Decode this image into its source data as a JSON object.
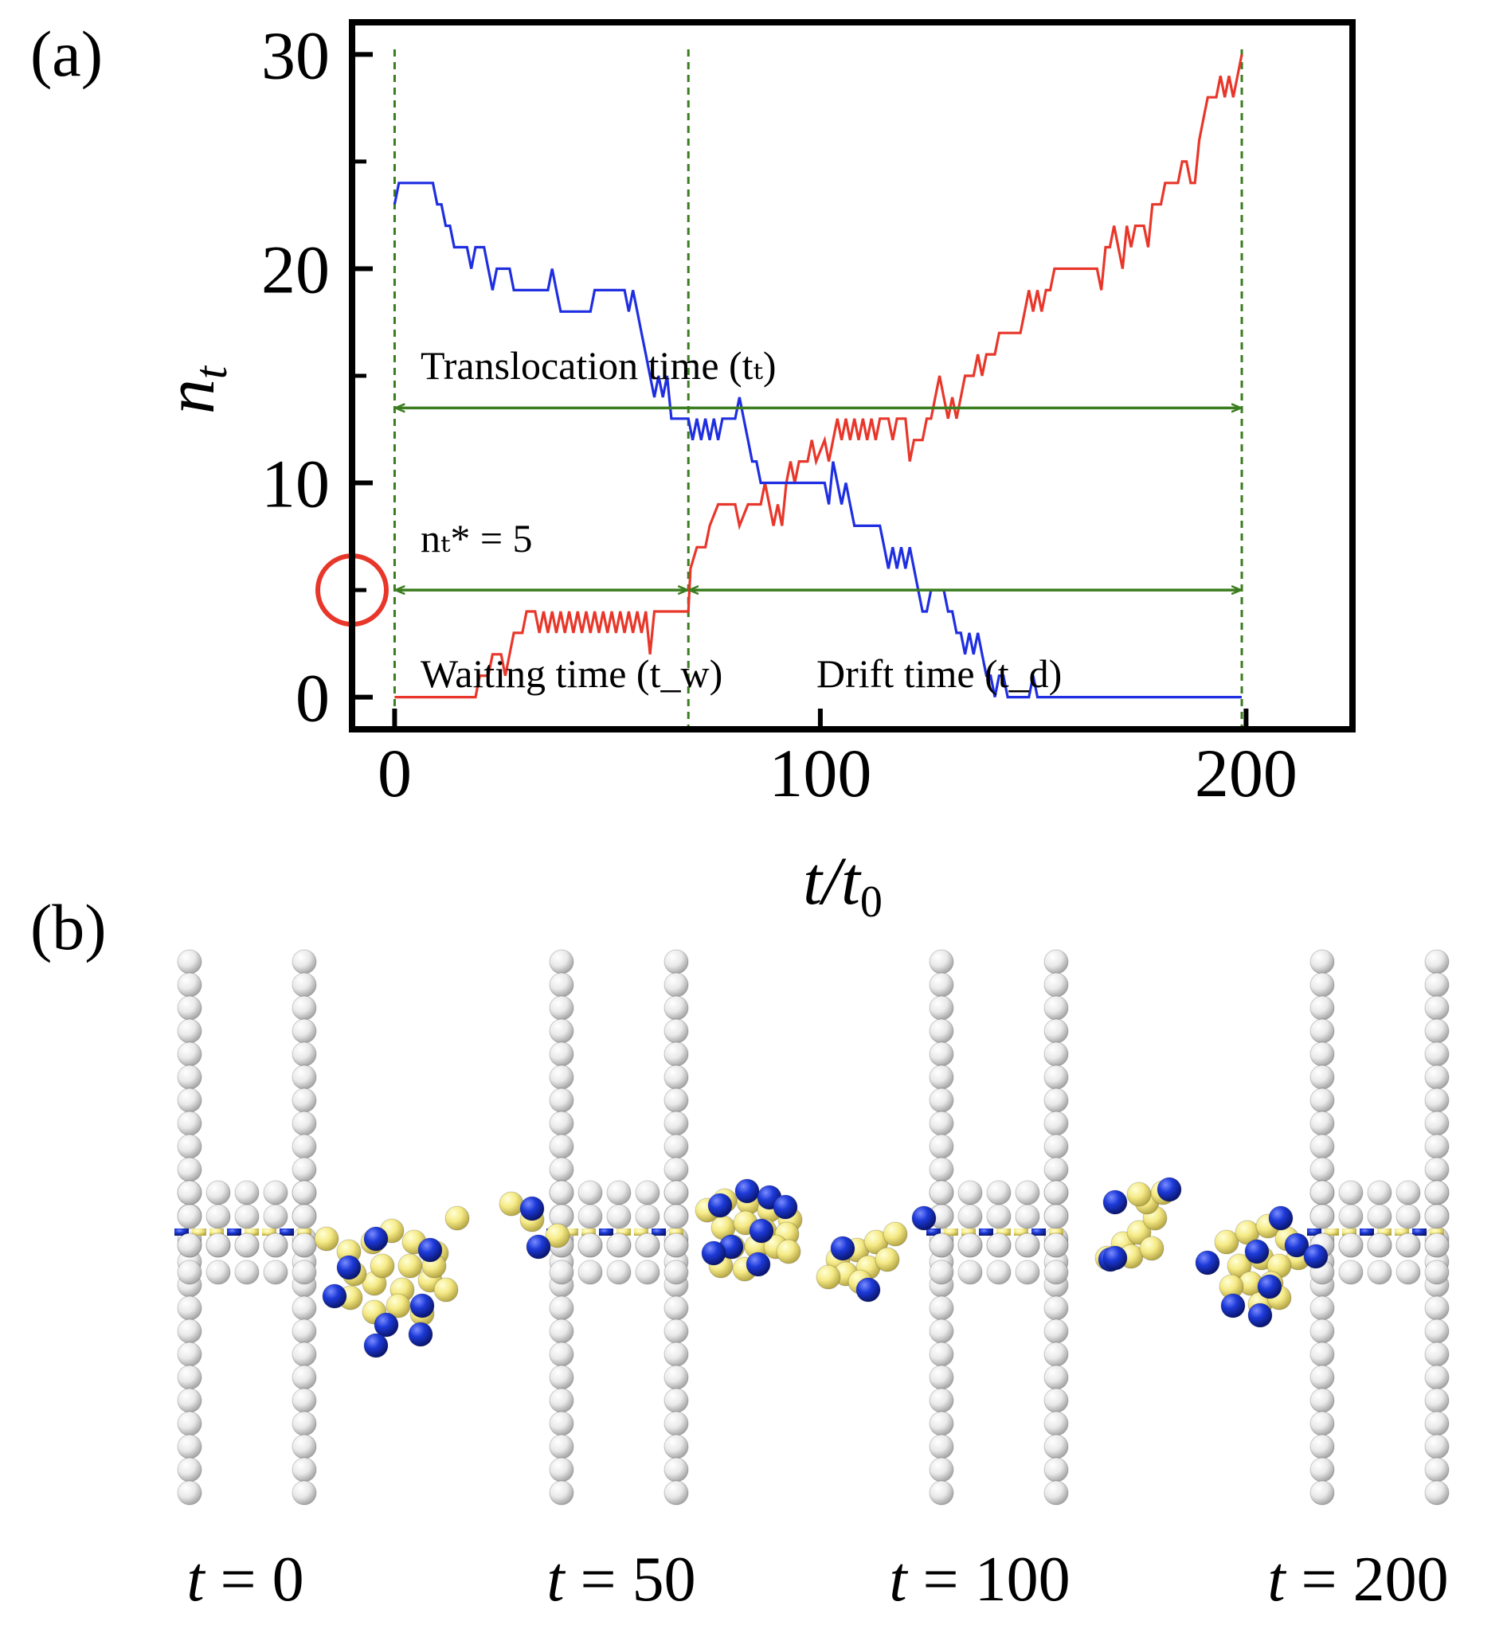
{
  "panel_labels": {
    "a": "(a)",
    "b": "(b)"
  },
  "chart_data": {
    "type": "line",
    "xlabel": "t/t₀",
    "ylabel": "n_t",
    "xlim": [
      -10,
      225
    ],
    "ylim": [
      -1.5,
      31.5
    ],
    "x_ticks": [
      0,
      100,
      200
    ],
    "y_ticks": [
      0,
      10,
      20,
      30
    ],
    "y_minor_ticks": [
      5,
      15,
      25
    ],
    "series": [
      {
        "name": "red",
        "color": "#e8372a",
        "points": [
          [
            0,
            0
          ],
          [
            19,
            0
          ],
          [
            20,
            1
          ],
          [
            22,
            1
          ],
          [
            23,
            2
          ],
          [
            25,
            2
          ],
          [
            26,
            1
          ],
          [
            27,
            2
          ],
          [
            28,
            3
          ],
          [
            30,
            3
          ],
          [
            31,
            4
          ],
          [
            33,
            4
          ],
          [
            34,
            3
          ],
          [
            35,
            4
          ],
          [
            36,
            3
          ],
          [
            37,
            4
          ],
          [
            38,
            3
          ],
          [
            39,
            4
          ],
          [
            40,
            3
          ],
          [
            41,
            4
          ],
          [
            42,
            3
          ],
          [
            43,
            4
          ],
          [
            44,
            3
          ],
          [
            45,
            4
          ],
          [
            46,
            3
          ],
          [
            47,
            4
          ],
          [
            48,
            3
          ],
          [
            49,
            4
          ],
          [
            50,
            3
          ],
          [
            51,
            4
          ],
          [
            52,
            3
          ],
          [
            53,
            4
          ],
          [
            54,
            3
          ],
          [
            55,
            4
          ],
          [
            56,
            3
          ],
          [
            57,
            4
          ],
          [
            58,
            3
          ],
          [
            59,
            4
          ],
          [
            60,
            2
          ],
          [
            61,
            4
          ],
          [
            69,
            4
          ],
          [
            69.5,
            6
          ],
          [
            71,
            7
          ],
          [
            73,
            7
          ],
          [
            74,
            8
          ],
          [
            76,
            9
          ],
          [
            80,
            9
          ],
          [
            81,
            8
          ],
          [
            83,
            9
          ],
          [
            86,
            9
          ],
          [
            87,
            10
          ],
          [
            88,
            9
          ],
          [
            89,
            8
          ],
          [
            90,
            9
          ],
          [
            91,
            8
          ],
          [
            92,
            10
          ],
          [
            93,
            11
          ],
          [
            94,
            10
          ],
          [
            95,
            11
          ],
          [
            97,
            11
          ],
          [
            98,
            12
          ],
          [
            99,
            11
          ],
          [
            101,
            12
          ],
          [
            102,
            11
          ],
          [
            103,
            12
          ],
          [
            104,
            13
          ],
          [
            105,
            12
          ],
          [
            106,
            13
          ],
          [
            107,
            12
          ],
          [
            108,
            13
          ],
          [
            109,
            12
          ],
          [
            110,
            13
          ],
          [
            111,
            12
          ],
          [
            112,
            13
          ],
          [
            113,
            12
          ],
          [
            114,
            13
          ],
          [
            116,
            13
          ],
          [
            117,
            12
          ],
          [
            118,
            13
          ],
          [
            120,
            13
          ],
          [
            121,
            11
          ],
          [
            122,
            12
          ],
          [
            124,
            12
          ],
          [
            125,
            13
          ],
          [
            126,
            13
          ],
          [
            127,
            14
          ],
          [
            128,
            15
          ],
          [
            129,
            14
          ],
          [
            130,
            13
          ],
          [
            131,
            14
          ],
          [
            132,
            13
          ],
          [
            133,
            14
          ],
          [
            134,
            15
          ],
          [
            136,
            15
          ],
          [
            137,
            16
          ],
          [
            138,
            15
          ],
          [
            139,
            16
          ],
          [
            141,
            16
          ],
          [
            142,
            17
          ],
          [
            147,
            17
          ],
          [
            148,
            18
          ],
          [
            149,
            19
          ],
          [
            150,
            18
          ],
          [
            151,
            19
          ],
          [
            152,
            18
          ],
          [
            153,
            19
          ],
          [
            154,
            19
          ],
          [
            155,
            20
          ],
          [
            165,
            20
          ],
          [
            166,
            19
          ],
          [
            167,
            21
          ],
          [
            168,
            21
          ],
          [
            169,
            22
          ],
          [
            170,
            21
          ],
          [
            171,
            20
          ],
          [
            172,
            22
          ],
          [
            173,
            21
          ],
          [
            174,
            22
          ],
          [
            176,
            22
          ],
          [
            177,
            21
          ],
          [
            178,
            23
          ],
          [
            180,
            23
          ],
          [
            181,
            24
          ],
          [
            184,
            24
          ],
          [
            185,
            25
          ],
          [
            186,
            25
          ],
          [
            187,
            24
          ],
          [
            188,
            24
          ],
          [
            189,
            26
          ],
          [
            190,
            27
          ],
          [
            191,
            28
          ],
          [
            193,
            28
          ],
          [
            194,
            29
          ],
          [
            195,
            28
          ],
          [
            196,
            29
          ],
          [
            197,
            28
          ],
          [
            198,
            29
          ],
          [
            199,
            30
          ]
        ]
      },
      {
        "name": "blue",
        "color": "#1f2ee0",
        "points": [
          [
            0,
            23
          ],
          [
            1,
            24
          ],
          [
            9,
            24
          ],
          [
            10,
            23
          ],
          [
            11,
            23
          ],
          [
            12,
            22
          ],
          [
            13,
            22
          ],
          [
            14,
            21
          ],
          [
            17,
            21
          ],
          [
            18,
            20
          ],
          [
            19,
            21
          ],
          [
            21,
            21
          ],
          [
            22,
            20
          ],
          [
            23,
            19
          ],
          [
            24,
            20
          ],
          [
            27,
            20
          ],
          [
            28,
            19
          ],
          [
            36,
            19
          ],
          [
            37,
            20
          ],
          [
            38,
            19
          ],
          [
            39,
            18
          ],
          [
            46,
            18
          ],
          [
            47,
            19
          ],
          [
            54,
            19
          ],
          [
            55,
            18
          ],
          [
            56,
            19
          ],
          [
            57,
            18
          ],
          [
            58,
            17
          ],
          [
            59,
            16
          ],
          [
            60,
            15
          ],
          [
            61,
            14
          ],
          [
            62,
            15
          ],
          [
            63,
            14
          ],
          [
            64,
            15
          ],
          [
            65,
            13
          ],
          [
            69,
            13
          ],
          [
            70,
            12
          ],
          [
            71,
            13
          ],
          [
            72,
            12
          ],
          [
            73,
            13
          ],
          [
            74,
            12
          ],
          [
            75,
            13
          ],
          [
            76,
            12
          ],
          [
            77,
            13
          ],
          [
            80,
            13
          ],
          [
            81,
            14
          ],
          [
            82,
            13
          ],
          [
            83,
            12
          ],
          [
            84,
            11
          ],
          [
            85,
            11
          ],
          [
            86,
            10
          ],
          [
            101,
            10
          ],
          [
            102,
            9
          ],
          [
            103,
            11
          ],
          [
            104,
            10
          ],
          [
            105,
            9
          ],
          [
            106,
            10
          ],
          [
            107,
            9
          ],
          [
            108,
            8
          ],
          [
            114,
            8
          ],
          [
            115,
            7
          ],
          [
            116,
            6
          ],
          [
            117,
            7
          ],
          [
            118,
            6
          ],
          [
            119,
            7
          ],
          [
            120,
            6
          ],
          [
            121,
            7
          ],
          [
            122,
            6
          ],
          [
            123,
            5
          ],
          [
            124,
            4
          ],
          [
            125,
            4
          ],
          [
            126,
            5
          ],
          [
            129,
            5
          ],
          [
            130,
            4
          ],
          [
            131,
            4
          ],
          [
            132,
            3
          ],
          [
            133,
            3
          ],
          [
            134,
            2
          ],
          [
            135,
            3
          ],
          [
            136,
            2
          ],
          [
            137,
            3
          ],
          [
            138,
            2
          ],
          [
            139,
            1
          ],
          [
            140,
            1
          ],
          [
            141,
            0
          ],
          [
            142,
            1
          ],
          [
            143,
            1
          ],
          [
            144,
            0
          ],
          [
            149,
            0
          ],
          [
            150,
            1
          ],
          [
            151,
            0
          ],
          [
            199,
            0
          ]
        ]
      }
    ],
    "vertical_lines": [
      0,
      69,
      199
    ],
    "arrows": [
      {
        "from": 0,
        "to": 199,
        "y": 13.5
      },
      {
        "from": 0,
        "to": 69,
        "y": 5
      },
      {
        "from": 69,
        "to": 199,
        "y": 5
      }
    ],
    "highlight_circle_y": 5,
    "annotations": {
      "translocation": "Translocation time (tₜ)",
      "threshold": "nₜ* = 5",
      "waiting": "Waiting time (t_w)",
      "drift": "Drift time (t_d)"
    }
  },
  "snapshots": {
    "labels": [
      "t = 0",
      "t = 50",
      "t = 100",
      "t = 200"
    ]
  }
}
